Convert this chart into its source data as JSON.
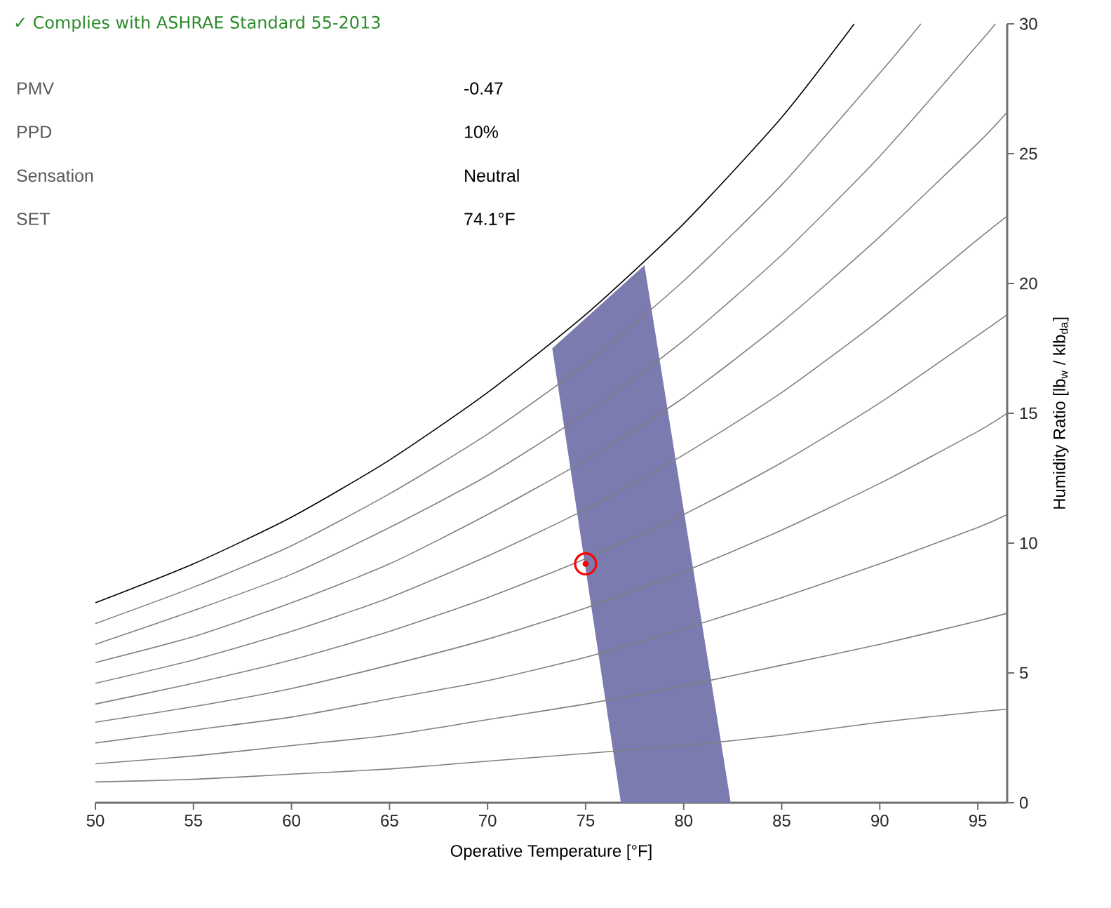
{
  "chart_data": {
    "type": "line",
    "title": "✓ Complies with ASHRAE Standard 55-2013",
    "annotations": [
      "PMV",
      "-0.47",
      "PPD",
      "10%",
      "Sensation",
      "Neutral",
      "SET",
      "74.1°F"
    ],
    "xlabel": "Operative Temperature [°F]",
    "ylabel": "Humidity Ratio [lb$_{w}$ / klb$_{da}$]",
    "xlim": [
      50,
      96.5
    ],
    "ylim": [
      0,
      30
    ],
    "xticks": [
      50,
      55,
      60,
      65,
      70,
      75,
      80,
      85,
      90,
      95
    ],
    "yticks": [
      0,
      5,
      10,
      15,
      20,
      25,
      30
    ],
    "series": [
      {
        "type": "area",
        "color": "#7b7bb0",
        "x": [
          76.8,
          82.4,
          78.0,
          73.3
        ],
        "values": [
          0,
          0,
          20.7,
          17.5
        ]
      },
      {
        "color": "#808080",
        "x": [
          50,
          55,
          60,
          65,
          70,
          75,
          80,
          85,
          90,
          95,
          96.5
        ],
        "values": [
          0.8,
          0.9,
          1.1,
          1.3,
          1.6,
          1.9,
          2.2,
          2.6,
          3.1,
          3.5,
          3.6
        ]
      },
      {
        "color": "#808080",
        "x": [
          50,
          55,
          60,
          65,
          70,
          75,
          80,
          85,
          90,
          95,
          96.5
        ],
        "values": [
          1.5,
          1.8,
          2.2,
          2.6,
          3.2,
          3.8,
          4.5,
          5.3,
          6.1,
          7.0,
          7.3
        ]
      },
      {
        "color": "#808080",
        "x": [
          50,
          55,
          60,
          65,
          70,
          75,
          80,
          85,
          90,
          95,
          96.5
        ],
        "values": [
          2.3,
          2.8,
          3.3,
          4.0,
          4.7,
          5.6,
          6.7,
          7.9,
          9.2,
          10.6,
          11.1
        ]
      },
      {
        "color": "#808080",
        "x": [
          50,
          55,
          60,
          65,
          70,
          75,
          80,
          85,
          90,
          95,
          96.5
        ],
        "values": [
          3.1,
          3.7,
          4.4,
          5.3,
          6.3,
          7.5,
          8.9,
          10.5,
          12.3,
          14.3,
          15.0
        ]
      },
      {
        "color": "#808080",
        "x": [
          50,
          55,
          60,
          65,
          70,
          75,
          80,
          85,
          90,
          95,
          96.5
        ],
        "values": [
          3.8,
          4.6,
          5.5,
          6.6,
          7.9,
          9.4,
          11.1,
          13.1,
          15.4,
          18.0,
          18.8
        ]
      },
      {
        "color": "#808080",
        "x": [
          50,
          55,
          60,
          65,
          70,
          75,
          80,
          85,
          90,
          95,
          96.5
        ],
        "values": [
          4.6,
          5.5,
          6.6,
          7.9,
          9.5,
          11.3,
          13.4,
          15.8,
          18.6,
          21.7,
          22.6
        ]
      },
      {
        "color": "#808080",
        "x": [
          50,
          55,
          60,
          65,
          70,
          75,
          80,
          85,
          90,
          95,
          96.5
        ],
        "values": [
          5.4,
          6.4,
          7.7,
          9.2,
          11.1,
          13.2,
          15.6,
          18.5,
          21.8,
          25.4,
          26.6
        ]
      },
      {
        "color": "#808080",
        "x": [
          50,
          55,
          60,
          65,
          70,
          75,
          80,
          85,
          90,
          95,
          95.9
        ],
        "values": [
          6.1,
          7.4,
          8.8,
          10.6,
          12.6,
          15.0,
          17.8,
          21.1,
          24.9,
          29.2,
          30
        ]
      },
      {
        "color": "#808080",
        "x": [
          50,
          55,
          60,
          65,
          70,
          75,
          80,
          85,
          90,
          92.1
        ],
        "values": [
          6.9,
          8.3,
          9.9,
          11.9,
          14.2,
          16.9,
          20.1,
          23.8,
          28.1,
          30
        ]
      },
      {
        "color": "#000000",
        "x": [
          50,
          55,
          60,
          65,
          70,
          75,
          80,
          85,
          88.7
        ],
        "values": [
          7.7,
          9.2,
          11.0,
          13.2,
          15.8,
          18.8,
          22.3,
          26.4,
          30
        ]
      },
      {
        "type": "scatter",
        "color": "#ff0000",
        "marker": "circle",
        "x": [
          75
        ],
        "values": [
          9.2
        ]
      }
    ]
  }
}
